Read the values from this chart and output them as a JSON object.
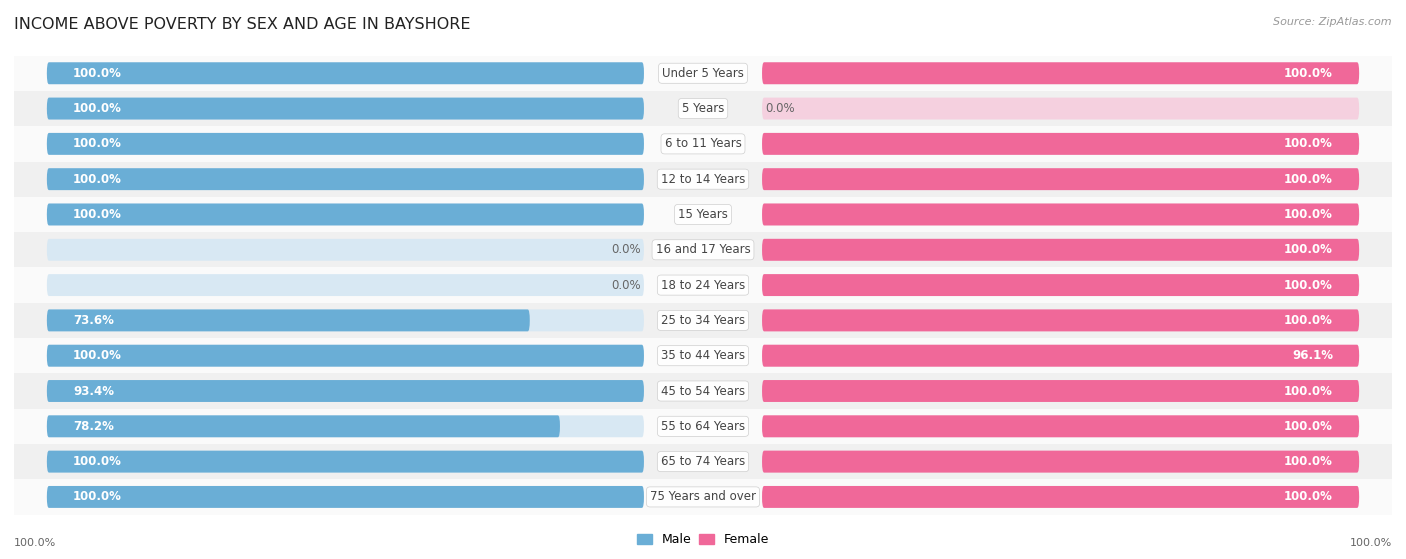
{
  "title": "INCOME ABOVE POVERTY BY SEX AND AGE IN BAYSHORE",
  "source": "Source: ZipAtlas.com",
  "categories": [
    "Under 5 Years",
    "5 Years",
    "6 to 11 Years",
    "12 to 14 Years",
    "15 Years",
    "16 and 17 Years",
    "18 to 24 Years",
    "25 to 34 Years",
    "35 to 44 Years",
    "45 to 54 Years",
    "55 to 64 Years",
    "65 to 74 Years",
    "75 Years and over"
  ],
  "male": [
    100.0,
    100.0,
    100.0,
    100.0,
    100.0,
    0.0,
    0.0,
    73.6,
    100.0,
    93.4,
    78.2,
    100.0,
    100.0
  ],
  "female": [
    100.0,
    0.0,
    100.0,
    100.0,
    100.0,
    100.0,
    100.0,
    100.0,
    96.1,
    100.0,
    100.0,
    100.0,
    100.0
  ],
  "male_color": "#6aaed6",
  "male_color_light": "#c5dcef",
  "female_color": "#f06899",
  "female_color_light": "#f5b8cf",
  "row_bg_odd": "#f0f0f0",
  "row_bg_even": "#fafafa",
  "title_fontsize": 11.5,
  "bar_label_fontsize": 8.5,
  "cat_label_fontsize": 8.5
}
